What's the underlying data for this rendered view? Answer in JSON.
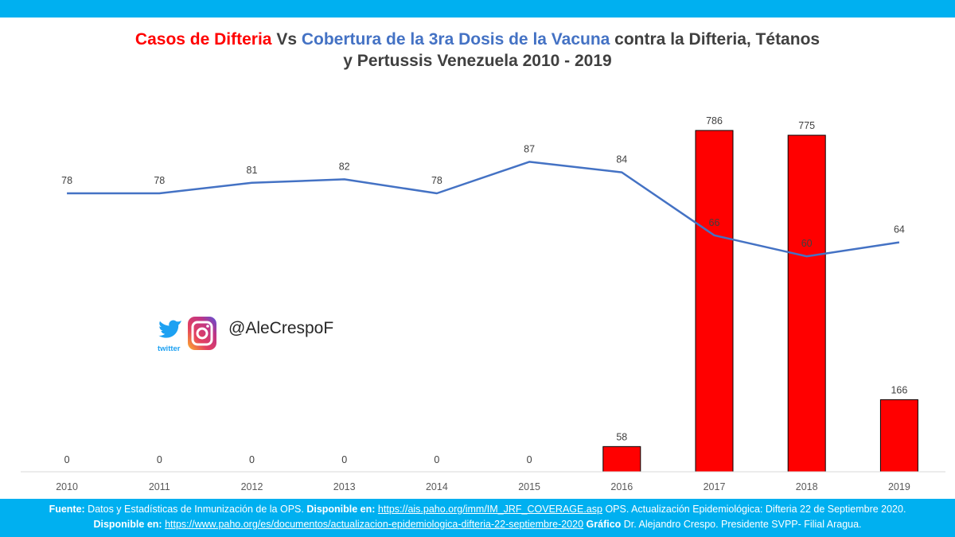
{
  "header": {
    "title_part1": "Casos de Difteria",
    "title_part2": " Vs ",
    "title_part3": "Cobertura de la 3ra Dosis de la Vacuna",
    "title_part4": " contra la Difteria, Tétanos",
    "title_line2": "y Pertussis Venezuela 2010 - 2019"
  },
  "social": {
    "twitter_icon": "twitter-bird-icon",
    "twitter_text": "twitter",
    "instagram_icon": "instagram-icon",
    "handle": "@AleCrespoF"
  },
  "footer": {
    "source_label": "Fuente:",
    "source_text": " Datos y Estadísticas de Inmunización de la OPS. ",
    "available_label1": "Disponible en:",
    "link1": "https://ais.paho.org/imm/IM_JRF_COVERAGE.asp",
    "after_link1": " OPS. Actualización Epidemiológica: Difteria 22 de Septiembre  2020.",
    "available_label2": "Disponible en:",
    "link2": "https://www.paho.org/es/documentos/actualizacion-epidemiologica-difteria-22-septiembre-2020",
    "graph_label": "Gráfico",
    "graph_text": " Dr. Alejandro Crespo. Presidente SVPP- Filial Aragua."
  },
  "colors": {
    "bars": "#ff0000",
    "line": "#4472c4",
    "band": "#00b0f0"
  },
  "chart_data": {
    "type": "bar+line",
    "categories": [
      "2010",
      "2011",
      "2012",
      "2013",
      "2014",
      "2015",
      "2016",
      "2017",
      "2018",
      "2019"
    ],
    "series": [
      {
        "name": "Casos de Difteria",
        "type": "bar",
        "values": [
          0,
          0,
          0,
          0,
          0,
          0,
          58,
          786,
          775,
          166
        ]
      },
      {
        "name": "Cobertura de la 3ra Dosis de la Vacuna",
        "type": "line",
        "values": [
          78,
          78,
          81,
          82,
          78,
          87,
          84,
          66,
          60,
          64
        ]
      }
    ],
    "data_labels": true,
    "gridlines": false,
    "legend": "none"
  }
}
